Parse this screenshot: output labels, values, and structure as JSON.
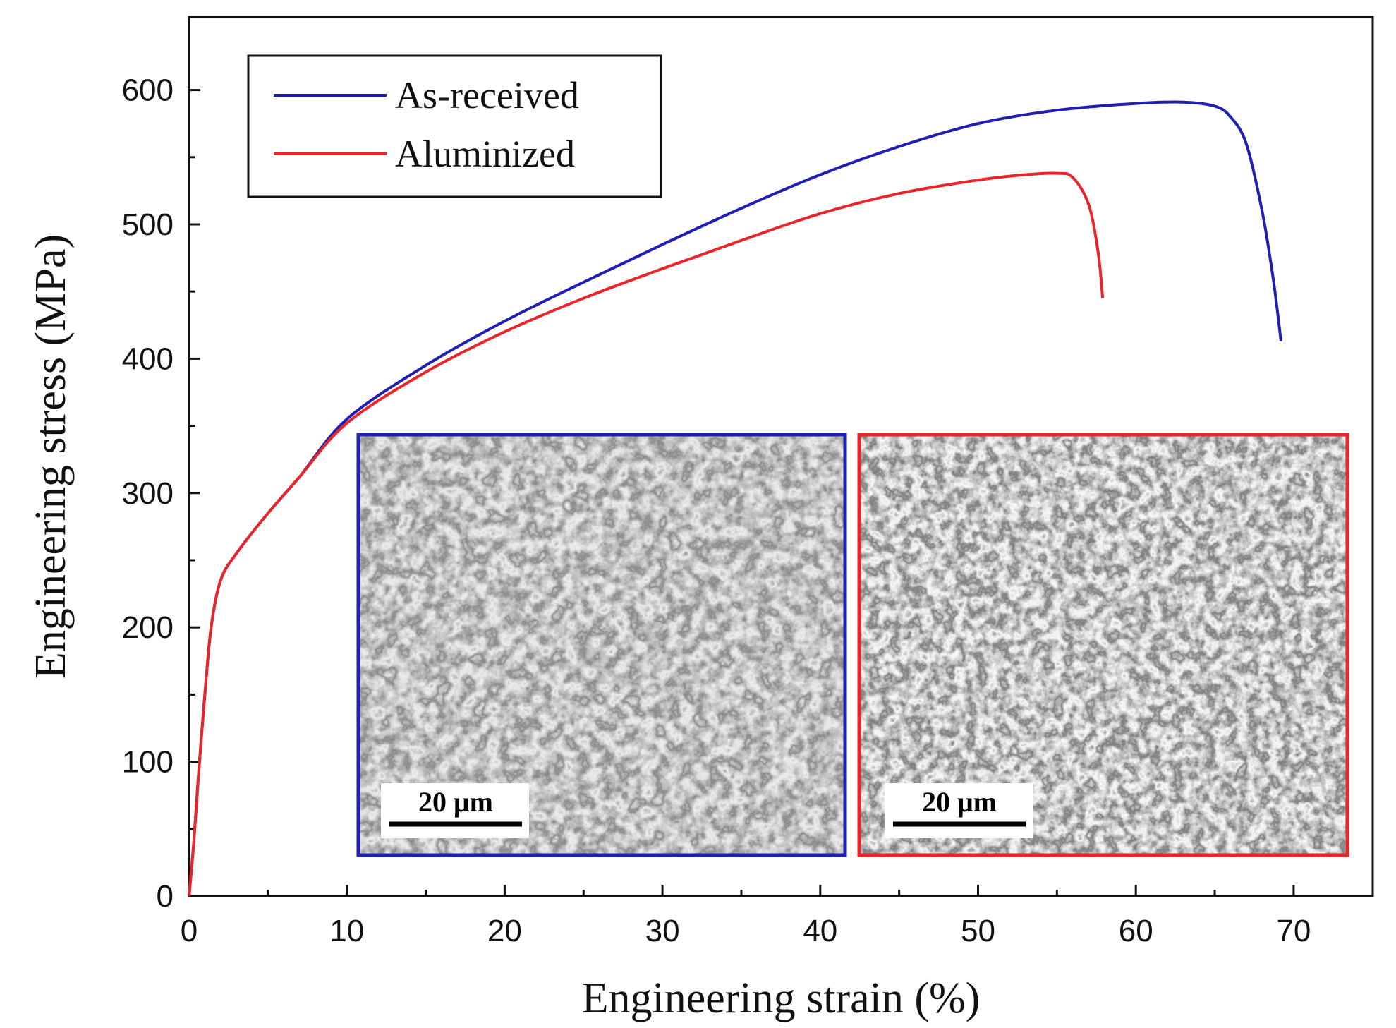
{
  "chart_data": {
    "type": "line",
    "xlabel": "Engineering strain (%)",
    "ylabel": "Engineering stress (MPa)",
    "xlim": [
      0,
      74.5
    ],
    "ylim": [
      0,
      600
    ],
    "x_ticks": [
      0,
      10,
      20,
      30,
      40,
      50,
      60,
      70
    ],
    "y_ticks": [
      0,
      100,
      200,
      300,
      400,
      500,
      600
    ],
    "grid": false,
    "legend_position": "top-left",
    "series": [
      {
        "name": "As-received",
        "color": "#1f1fb4",
        "points": [
          [
            0,
            0
          ],
          [
            0.3,
            40
          ],
          [
            0.6,
            90
          ],
          [
            1.0,
            150
          ],
          [
            1.4,
            200
          ],
          [
            2.0,
            235
          ],
          [
            3,
            255
          ],
          [
            5,
            285
          ],
          [
            7,
            312
          ],
          [
            10,
            355
          ],
          [
            15,
            395
          ],
          [
            20,
            428
          ],
          [
            25,
            457
          ],
          [
            30,
            485
          ],
          [
            35,
            512
          ],
          [
            40,
            537
          ],
          [
            45,
            558
          ],
          [
            50,
            575
          ],
          [
            55,
            585
          ],
          [
            60,
            590
          ],
          [
            63,
            591
          ],
          [
            65,
            588
          ],
          [
            66,
            580
          ],
          [
            67,
            560
          ],
          [
            68,
            510
          ],
          [
            68.7,
            460
          ],
          [
            69.2,
            413
          ]
        ]
      },
      {
        "name": "Aluminized",
        "color": "#e8262a",
        "points": [
          [
            0,
            0
          ],
          [
            0.3,
            40
          ],
          [
            0.6,
            90
          ],
          [
            1.0,
            150
          ],
          [
            1.4,
            200
          ],
          [
            2.0,
            235
          ],
          [
            3,
            255
          ],
          [
            5,
            285
          ],
          [
            7,
            312
          ],
          [
            10,
            352
          ],
          [
            15,
            390
          ],
          [
            20,
            420
          ],
          [
            25,
            445
          ],
          [
            30,
            467
          ],
          [
            35,
            488
          ],
          [
            40,
            508
          ],
          [
            45,
            523
          ],
          [
            50,
            533
          ],
          [
            53,
            537
          ],
          [
            55,
            538
          ],
          [
            56,
            535
          ],
          [
            57,
            515
          ],
          [
            57.6,
            480
          ],
          [
            57.9,
            445
          ]
        ]
      }
    ],
    "insets": [
      {
        "name": "as-received-fractograph",
        "frame_color": "#1f1fb4",
        "scale_bar": "20 μm"
      },
      {
        "name": "aluminized-fractograph",
        "frame_color": "#e8262a",
        "scale_bar": "20 μm"
      }
    ]
  }
}
